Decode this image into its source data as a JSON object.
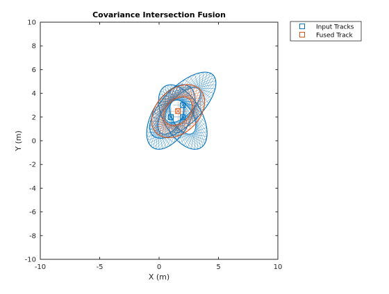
{
  "chart_data": {
    "type": "scatter",
    "title": "Covariance Intersection Fusion",
    "xlabel": "X (m)",
    "ylabel": "Y (m)",
    "xlim": [
      -10,
      10
    ],
    "ylim": [
      -10,
      10
    ],
    "xticks": [
      -10,
      -5,
      0,
      5,
      10
    ],
    "yticks": [
      -10,
      -8,
      -6,
      -4,
      -2,
      0,
      2,
      4,
      6,
      8,
      10
    ],
    "grid": false,
    "legend_position": "outside-top-right",
    "series": [
      {
        "name": "Input Tracks",
        "color": "#0072BD",
        "marker": "square",
        "points": [
          [
            1,
            2
          ],
          [
            2,
            3
          ],
          [
            2,
            2
          ]
        ],
        "covariance_ellipses": [
          {
            "center": [
              1,
              2
            ],
            "semi_axes": [
              3.0,
              1.6
            ],
            "angle_deg": 60,
            "sigma": 1
          },
          {
            "center": [
              2,
              3
            ],
            "semi_axes": [
              3.6,
              1.6
            ],
            "angle_deg": 45,
            "sigma": 1
          },
          {
            "center": [
              2,
              2
            ],
            "semi_axes": [
              3.0,
              1.6
            ],
            "angle_deg": 120,
            "sigma": 1
          }
        ]
      },
      {
        "name": "Fused Track",
        "color": "#D95319",
        "marker": "square",
        "points": [
          [
            1.6,
            2.5
          ]
        ],
        "covariance_ellipses": [
          {
            "center": [
              1.6,
              2.5
            ],
            "semi_axes": [
              2.6,
              1.8
            ],
            "angle_deg": 45,
            "sigma": 1
          }
        ]
      }
    ]
  }
}
